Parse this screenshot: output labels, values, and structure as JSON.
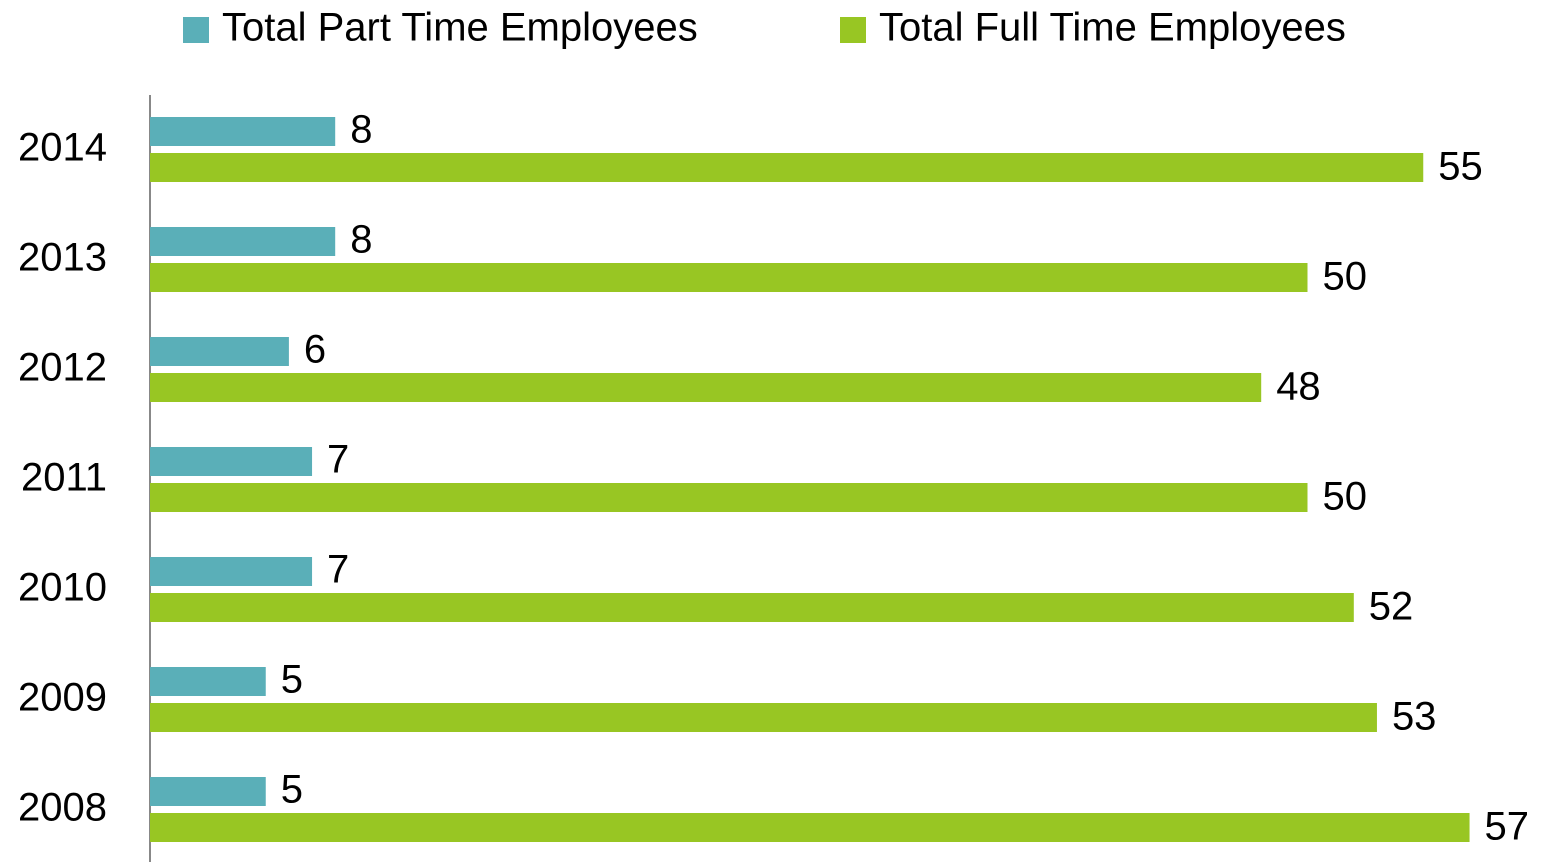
{
  "chart_data": {
    "type": "hbar",
    "categories": [
      "2014",
      "2013",
      "2012",
      "2011",
      "2010",
      "2009",
      "2008"
    ],
    "series": [
      {
        "name": "Total Part Time Employees",
        "color": "#5aafb8",
        "values": [
          8,
          8,
          6,
          7,
          7,
          5,
          5
        ]
      },
      {
        "name": "Total Full Time Employees",
        "color": "#98c623",
        "values": [
          55,
          50,
          48,
          50,
          52,
          53,
          57
        ]
      }
    ],
    "xlim": [
      0,
      60
    ],
    "legend": "top"
  }
}
